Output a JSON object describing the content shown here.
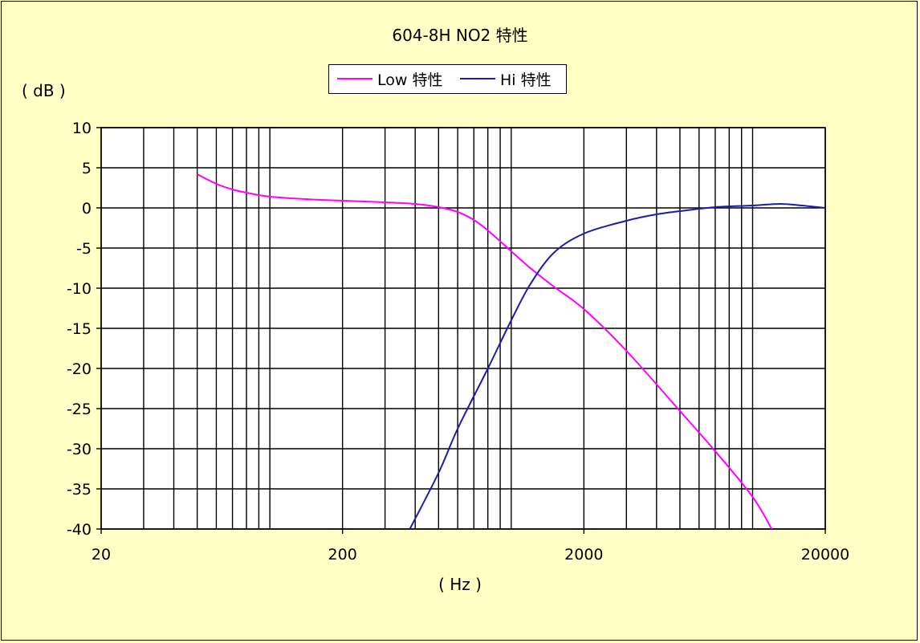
{
  "chart_data": {
    "type": "line",
    "title": "604-8H  NO2 特性",
    "ylabel": "( dB )",
    "xlabel": "( Hz )",
    "x_scale": "log",
    "xlim": [
      20,
      20000
    ],
    "ylim": [
      -40,
      10
    ],
    "x_ticks": [
      "20",
      "200",
      "2000",
      "20000"
    ],
    "y_ticks": [
      "10",
      "5",
      "0",
      "-5",
      "-10",
      "-15",
      "-20",
      "-25",
      "-30",
      "-35",
      "-40"
    ],
    "grid": true,
    "legend_position": "top",
    "series": [
      {
        "name": "Low 特性",
        "color": "#ff00ff",
        "points": [
          [
            50,
            4.2
          ],
          [
            60,
            3
          ],
          [
            70,
            2.3
          ],
          [
            80,
            1.9
          ],
          [
            100,
            1.4
          ],
          [
            150,
            1.05
          ],
          [
            200,
            0.9
          ],
          [
            300,
            0.7
          ],
          [
            400,
            0.5
          ],
          [
            500,
            0.1
          ],
          [
            600,
            -0.5
          ],
          [
            700,
            -1.5
          ],
          [
            800,
            -2.8
          ],
          [
            1000,
            -5.4
          ],
          [
            1200,
            -7.5
          ],
          [
            1500,
            -9.8
          ],
          [
            2000,
            -12.6
          ],
          [
            3000,
            -17.8
          ],
          [
            5000,
            -25.3
          ],
          [
            7000,
            -30.3
          ],
          [
            10000,
            -36
          ],
          [
            12000,
            -40
          ]
        ]
      },
      {
        "name": "Hi 特性",
        "color": "#1c1ca8",
        "points": [
          [
            380,
            -40
          ],
          [
            500,
            -33
          ],
          [
            600,
            -27.5
          ],
          [
            800,
            -20
          ],
          [
            1000,
            -14
          ],
          [
            1200,
            -9.5
          ],
          [
            1500,
            -5.6
          ],
          [
            2000,
            -3.2
          ],
          [
            3000,
            -1.6
          ],
          [
            4000,
            -0.8
          ],
          [
            5000,
            -0.4
          ],
          [
            7000,
            0.1
          ],
          [
            10000,
            0.3
          ],
          [
            13000,
            0.5
          ],
          [
            16000,
            0.3
          ],
          [
            20000,
            0
          ]
        ]
      }
    ]
  }
}
